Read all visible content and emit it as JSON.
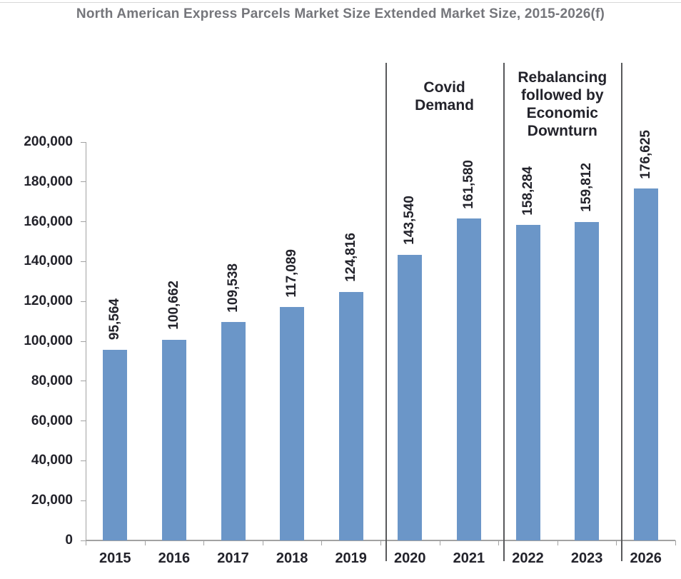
{
  "chart_data": {
    "type": "bar",
    "title": "North American Express Parcels Market Size Extended Market Size, 2015-2026(f)",
    "title_color": "#75767B",
    "categories": [
      "2015",
      "2016",
      "2017",
      "2018",
      "2019",
      "2020",
      "2021",
      "2022",
      "2023",
      "2026"
    ],
    "values": [
      95564,
      100662,
      109538,
      117089,
      124816,
      143540,
      161580,
      158284,
      159812,
      176625
    ],
    "value_labels": [
      "95,564",
      "100,662",
      "109,538",
      "117,089",
      "124,816",
      "143,540",
      "161,580",
      "158,284",
      "159,812",
      "176,625"
    ],
    "xlabel": "",
    "ylabel": "",
    "ylim": [
      0,
      200000
    ],
    "ytick_step": 20000,
    "ytick_labels": [
      "0",
      "20,000",
      "40,000",
      "60,000",
      "80,000",
      "100,000",
      "120,000",
      "140,000",
      "160,000",
      "180,000",
      "200,000"
    ],
    "grid": false,
    "legend": false,
    "bar_color": "#6B96C8",
    "axis_color": "#A2A2A2",
    "divider_color": "#58595B",
    "text_color": "#23232B",
    "top_rule_color": "#D8D8D8",
    "phase_dividers_after_category": [
      "2019",
      "2021",
      "2023"
    ],
    "annotations": [
      {
        "name": "covid-demand",
        "lines": [
          "Covid",
          "Demand"
        ]
      },
      {
        "name": "rebalancing-economic-downturn",
        "lines": [
          "Rebalancing",
          "followed by",
          "Economic",
          "Downturn"
        ]
      }
    ]
  }
}
